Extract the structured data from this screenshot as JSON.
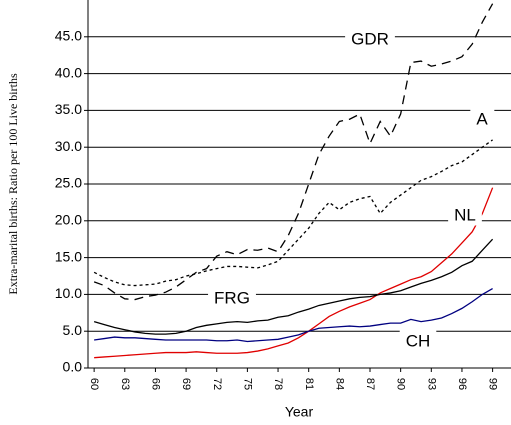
{
  "chart_data": {
    "type": "line",
    "y_label": "Extra-marital births: Ratio per 100 Live births",
    "x_label": "Year",
    "x": [
      60,
      61,
      62,
      63,
      64,
      65,
      66,
      67,
      68,
      69,
      70,
      71,
      72,
      73,
      74,
      75,
      76,
      77,
      78,
      79,
      80,
      81,
      82,
      83,
      84,
      85,
      86,
      87,
      88,
      89,
      90,
      91,
      92,
      93,
      94,
      95,
      96,
      97,
      98,
      99
    ],
    "series": [
      {
        "name": "GDR",
        "color": "#000000",
        "dash": "9,6",
        "values": [
          11.7,
          11.2,
          10.2,
          9.4,
          9.3,
          9.7,
          9.9,
          10.3,
          11.0,
          12.0,
          13.0,
          13.5,
          15.2,
          15.8,
          15.4,
          16.1,
          16.0,
          16.3,
          15.8,
          18.0,
          21.0,
          25.0,
          29.0,
          31.5,
          33.5,
          33.8,
          34.5,
          30.5,
          33.5,
          31.5,
          34.5,
          41.5,
          41.7,
          41.0,
          41.3,
          41.7,
          42.3,
          44.0,
          47.0,
          49.5
        ]
      },
      {
        "name": "A",
        "color": "#000000",
        "dash": "3,3",
        "values": [
          13.0,
          12.3,
          11.7,
          11.3,
          11.2,
          11.3,
          11.4,
          11.8,
          12.0,
          12.5,
          12.8,
          13.2,
          13.5,
          13.8,
          13.8,
          13.7,
          13.6,
          14.0,
          14.5,
          16.0,
          17.5,
          19.0,
          21.0,
          22.5,
          21.5,
          22.5,
          23.0,
          23.3,
          21.0,
          22.5,
          23.5,
          24.5,
          25.5,
          26.0,
          26.7,
          27.5,
          28.0,
          29.0,
          30.0,
          31.0
        ]
      },
      {
        "name": "NL",
        "color": "#e00000",
        "values": [
          1.4,
          1.5,
          1.6,
          1.7,
          1.8,
          1.9,
          2.0,
          2.1,
          2.1,
          2.1,
          2.2,
          2.1,
          2.0,
          2.0,
          2.0,
          2.1,
          2.3,
          2.6,
          3.0,
          3.4,
          4.1,
          5.0,
          6.0,
          7.0,
          7.7,
          8.3,
          8.8,
          9.3,
          10.2,
          10.8,
          11.4,
          12.0,
          12.4,
          13.1,
          14.3,
          15.5,
          17.0,
          18.5,
          21.0,
          24.5
        ]
      },
      {
        "name": "FRG",
        "color": "#000000",
        "values": [
          6.3,
          5.9,
          5.5,
          5.2,
          4.9,
          4.7,
          4.6,
          4.6,
          4.7,
          5.0,
          5.5,
          5.8,
          6.0,
          6.2,
          6.3,
          6.2,
          6.4,
          6.5,
          6.9,
          7.1,
          7.6,
          8.0,
          8.5,
          8.8,
          9.1,
          9.4,
          9.6,
          9.7,
          10.0,
          10.2,
          10.5,
          11.0,
          11.5,
          11.9,
          12.4,
          13.0,
          13.9,
          14.5,
          16.0,
          17.5
        ]
      },
      {
        "name": "CH",
        "color": "#000080",
        "values": [
          3.8,
          4.0,
          4.2,
          4.1,
          4.1,
          4.0,
          3.9,
          3.8,
          3.8,
          3.8,
          3.8,
          3.8,
          3.7,
          3.7,
          3.8,
          3.6,
          3.7,
          3.8,
          3.9,
          4.2,
          4.5,
          5.0,
          5.4,
          5.5,
          5.6,
          5.7,
          5.6,
          5.7,
          5.9,
          6.1,
          6.1,
          6.6,
          6.3,
          6.5,
          6.8,
          7.4,
          8.1,
          9.0,
          10.0,
          10.8
        ]
      }
    ],
    "xlim": [
      59.4,
      100.8
    ],
    "xticks": [
      60,
      63,
      66,
      69,
      72,
      75,
      78,
      81,
      84,
      87,
      90,
      93,
      96,
      99
    ],
    "ylim": [
      0,
      50
    ],
    "yticks": [
      {
        "value": 0,
        "label": "0.0"
      },
      {
        "value": 5,
        "label": "5.0"
      },
      {
        "value": 10,
        "label": "10.0"
      },
      {
        "value": 15,
        "label": "15.0"
      },
      {
        "value": 20,
        "label": "20.0"
      },
      {
        "value": 25,
        "label": "25.0"
      },
      {
        "value": 30,
        "label": "30.0"
      },
      {
        "value": 35,
        "label": "35.0"
      },
      {
        "value": 40,
        "label": "40.0"
      },
      {
        "value": 45,
        "label": "45.0"
      }
    ],
    "grid": true
  }
}
